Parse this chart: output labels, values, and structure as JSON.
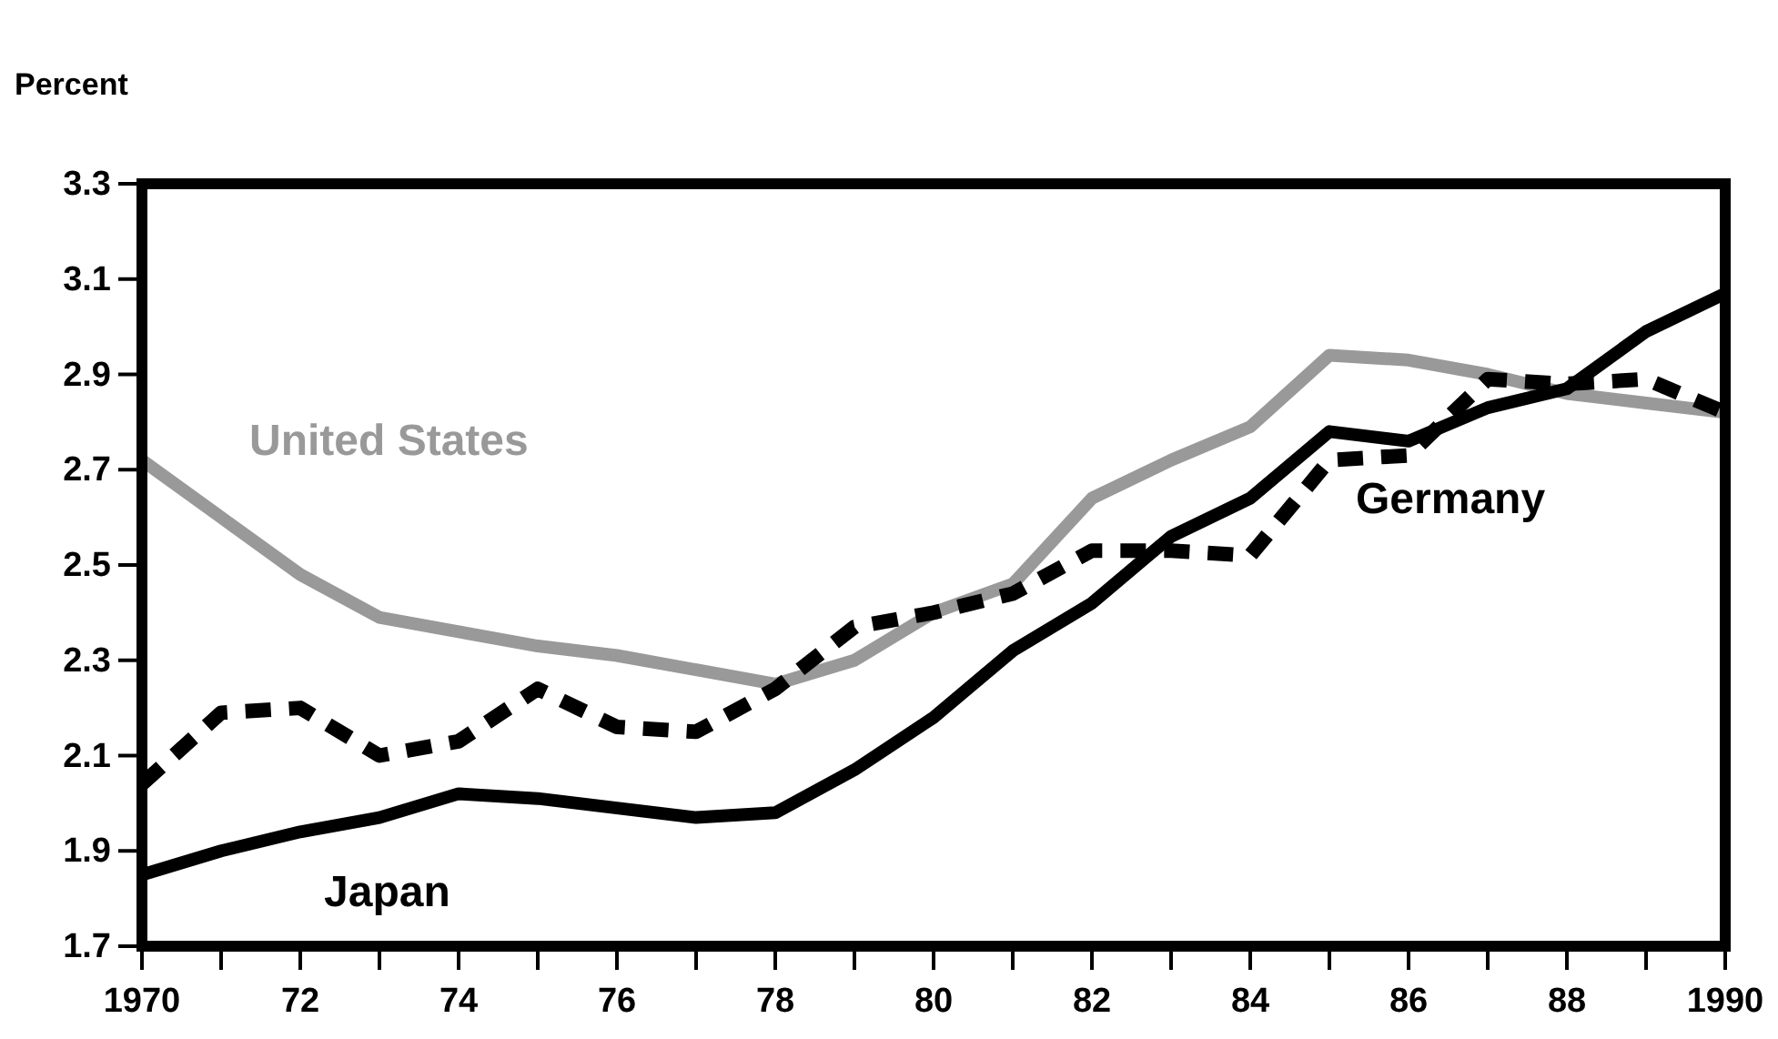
{
  "chart_data": {
    "type": "line",
    "ylabel": "Percent",
    "x": [
      1970,
      1971,
      1972,
      1973,
      1974,
      1975,
      1976,
      1977,
      1978,
      1979,
      1980,
      1981,
      1982,
      1983,
      1984,
      1985,
      1986,
      1987,
      1988,
      1989,
      1990
    ],
    "series": [
      {
        "name": "United States",
        "color": "#999999",
        "line_style": "solid",
        "values": [
          2.72,
          2.6,
          2.48,
          2.39,
          2.36,
          2.33,
          2.31,
          2.28,
          2.25,
          2.3,
          2.4,
          2.46,
          2.64,
          2.72,
          2.79,
          2.94,
          2.93,
          2.9,
          2.86,
          2.84,
          2.82
        ]
      },
      {
        "name": "Japan",
        "color": "#000000",
        "line_style": "solid",
        "values": [
          1.85,
          1.9,
          1.94,
          1.97,
          2.02,
          2.01,
          1.99,
          1.97,
          1.98,
          2.07,
          2.18,
          2.32,
          2.42,
          2.56,
          2.64,
          2.78,
          2.76,
          2.83,
          2.87,
          2.99,
          3.07
        ]
      },
      {
        "name": "Germany",
        "color": "#000000",
        "line_style": "dashed",
        "values": [
          2.04,
          2.19,
          2.2,
          2.1,
          2.13,
          2.24,
          2.16,
          2.15,
          2.24,
          2.37,
          2.4,
          2.44,
          2.53,
          2.53,
          2.52,
          2.72,
          2.73,
          2.89,
          2.88,
          2.89,
          2.82
        ]
      }
    ],
    "xlim": [
      1970,
      1990
    ],
    "xticks": [
      1970,
      {
        "value": 1971,
        "label": null
      },
      {
        "value": 1972,
        "label": "72"
      },
      {
        "value": 1973,
        "label": null
      },
      {
        "value": 1974,
        "label": "74"
      },
      {
        "value": 1975,
        "label": null
      },
      {
        "value": 1976,
        "label": "76"
      },
      {
        "value": 1977,
        "label": null
      },
      {
        "value": 1978,
        "label": "78"
      },
      {
        "value": 1979,
        "label": null
      },
      {
        "value": 1980,
        "label": "80"
      },
      {
        "value": 1981,
        "label": null
      },
      {
        "value": 1982,
        "label": "82"
      },
      {
        "value": 1983,
        "label": null
      },
      {
        "value": 1984,
        "label": "84"
      },
      {
        "value": 1985,
        "label": null
      },
      {
        "value": 1986,
        "label": "86"
      },
      {
        "value": 1987,
        "label": null
      },
      {
        "value": 1988,
        "label": "88"
      },
      {
        "value": 1989,
        "label": null
      },
      1990
    ],
    "ylim": [
      1.7,
      3.3
    ],
    "yticks": [
      1.7,
      1.9,
      2.1,
      2.3,
      2.5,
      2.7,
      2.9,
      3.1,
      3.3
    ],
    "grid": false,
    "legend": false,
    "marker": "none"
  }
}
